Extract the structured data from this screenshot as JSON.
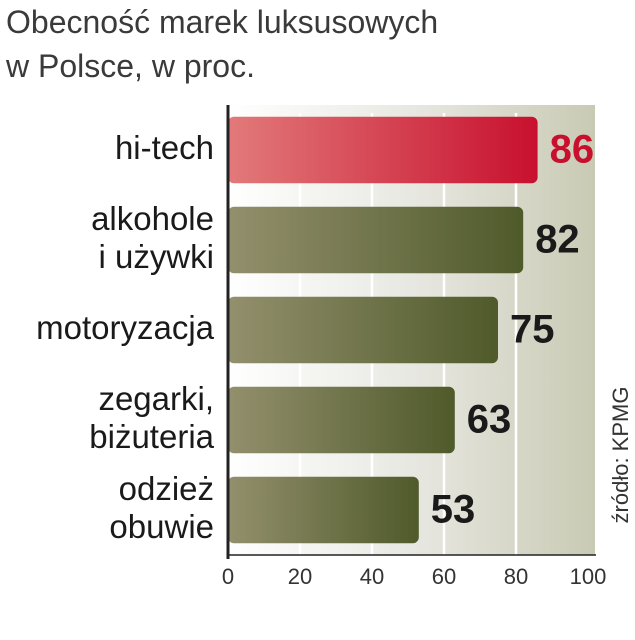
{
  "chart_data": {
    "type": "barh",
    "title": "Obecność marek luksusowych\nw Polsce, w proc.",
    "categories": [
      "hi-tech",
      "alkohole\ni używki",
      "motoryzacja",
      "zegarki,\nbiżuteria",
      "odzież\nobuwie"
    ],
    "values": [
      86,
      82,
      75,
      63,
      53
    ],
    "colors": [
      [
        "#e27a7a",
        "#c8102e"
      ],
      [
        "#93906d",
        "#4f5a2a"
      ],
      [
        "#93906d",
        "#4f5a2a"
      ],
      [
        "#93906d",
        "#4f5a2a"
      ],
      [
        "#93906d",
        "#4f5a2a"
      ]
    ],
    "label_colors": [
      "#c8102e",
      "#1a1a1a",
      "#1a1a1a",
      "#1a1a1a",
      "#1a1a1a"
    ],
    "xlim": [
      0,
      100
    ],
    "xticks": [
      0,
      20,
      40,
      60,
      80,
      100
    ],
    "grid": true,
    "source": "źródło: KPMG"
  }
}
